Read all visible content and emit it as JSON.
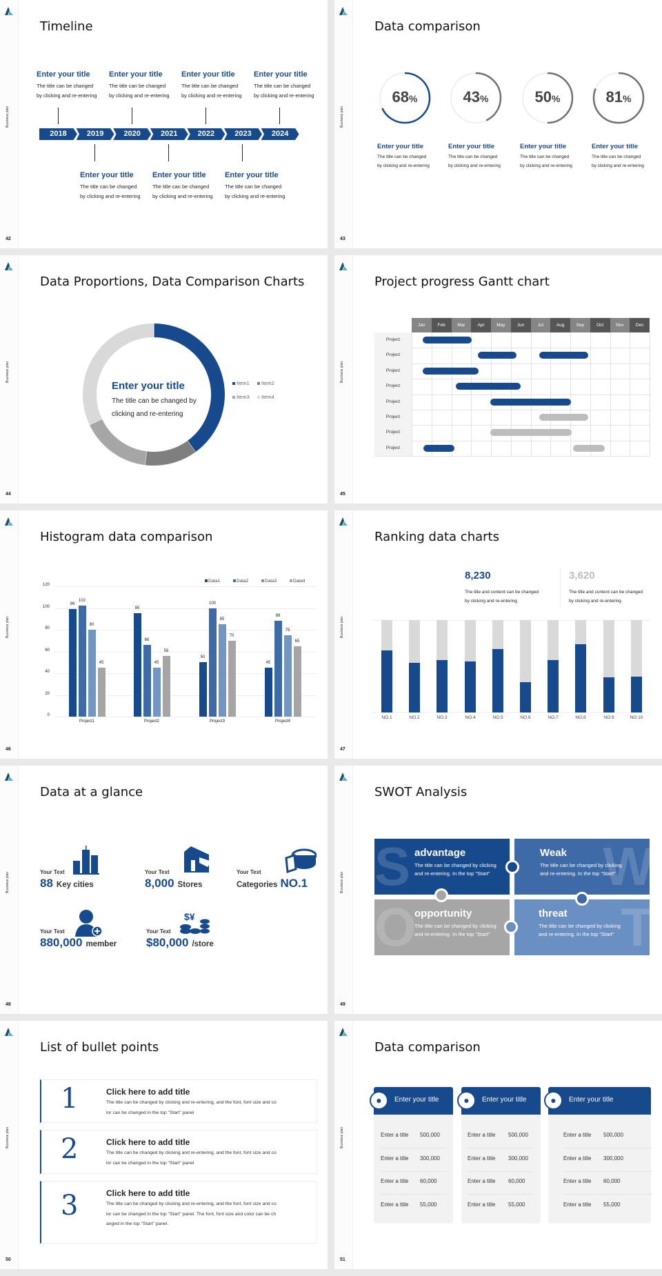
{
  "deck_label": "Business plan",
  "colors": {
    "blue": "#174a8c",
    "mid_blue": "#3e6aa6",
    "light_blue": "#7395c2",
    "gray": "#a5a5a5",
    "light_gray": "#d9d9d9"
  },
  "slides": [
    {
      "page": "42",
      "title": "Timeline",
      "years": [
        "2018",
        "2019",
        "2020",
        "2021",
        "2022",
        "2023",
        "2024"
      ],
      "top_items": [
        {
          "title": "Enter your title",
          "desc1": "The title can be changed",
          "desc2": "by clicking and re-entering"
        },
        {
          "title": "Enter your title",
          "desc1": "The title can be changed",
          "desc2": "by clicking and re-entering"
        },
        {
          "title": "Enter your title",
          "desc1": "The title can be changed",
          "desc2": "by clicking and re-entering"
        },
        {
          "title": "Enter your title",
          "desc1": "The title can be changed",
          "desc2": "by clicking and re-entering"
        }
      ],
      "bottom_items": [
        {
          "title": "Enter your title",
          "desc1": "The title can be changed",
          "desc2": "by clicking and re-entering"
        },
        {
          "title": "Enter your title",
          "desc1": "The title can be changed",
          "desc2": "by clicking and re-entering"
        },
        {
          "title": "Enter your title",
          "desc1": "The title can be changed",
          "desc2": "by clicking and re-entering"
        }
      ]
    },
    {
      "page": "43",
      "title": "Data comparison",
      "rings": [
        {
          "value": 68,
          "label": "68",
          "unit": "%",
          "color": "#174a8c",
          "title": "Enter your title",
          "desc1": "The title can be changed",
          "desc2": "by clicking and re-entering"
        },
        {
          "value": 43,
          "label": "43",
          "unit": "%",
          "color": "#707070",
          "title": "Enter your title",
          "desc1": "The title can be changed",
          "desc2": "by clicking and re-entering"
        },
        {
          "value": 50,
          "label": "50",
          "unit": "%",
          "color": "#707070",
          "title": "Enter your title",
          "desc1": "The title can be changed",
          "desc2": "by clicking and re-entering"
        },
        {
          "value": 81,
          "label": "81",
          "unit": "%",
          "color": "#707070",
          "title": "Enter your title",
          "desc1": "The title can be changed",
          "desc2": "by clicking and re-entering"
        }
      ]
    },
    {
      "page": "44",
      "title": "Data Proportions, Data Comparison Charts",
      "center_title": "Enter your title",
      "center_desc1": "The title can be changed by",
      "center_desc2": "clicking and re-entering",
      "legend_position": "right"
    },
    {
      "page": "45",
      "title": "Project progress Gantt chart",
      "months": [
        "Jan",
        "Feb",
        "Mar",
        "Apr",
        "May",
        "Jun",
        "Jul",
        "Aug",
        "Sep",
        "Oct",
        "Nov",
        "Dec"
      ],
      "rows": [
        {
          "label": "Project",
          "bars": [
            {
              "start": 0.57,
              "end": 3.03,
              "status": "active"
            }
          ]
        },
        {
          "label": "Project",
          "bars": [
            {
              "start": 3.33,
              "end": 5.3,
              "status": "active"
            },
            {
              "start": 6.43,
              "end": 8.9,
              "status": "active"
            }
          ]
        },
        {
          "label": "Project",
          "bars": [
            {
              "start": 0.57,
              "end": 3.36,
              "status": "active"
            }
          ]
        },
        {
          "label": "Project",
          "bars": [
            {
              "start": 2.24,
              "end": 5.48,
              "status": "active"
            }
          ]
        },
        {
          "label": "Project",
          "bars": [
            {
              "start": 3.95,
              "end": 8.03,
              "status": "active"
            }
          ]
        },
        {
          "label": "Project",
          "bars": [
            {
              "start": 6.43,
              "end": 8.9,
              "status": "planned"
            }
          ]
        },
        {
          "label": "Project",
          "bars": [
            {
              "start": 3.95,
              "end": 8.07,
              "status": "planned"
            }
          ]
        },
        {
          "label": "Project",
          "bars": [
            {
              "start": 0.58,
              "end": 2.16,
              "status": "active"
            },
            {
              "start": 8.15,
              "end": 9.74,
              "status": "planned"
            }
          ]
        }
      ]
    },
    {
      "page": "46",
      "title": "Histogram data comparison"
    },
    {
      "page": "47",
      "title": "Ranking data charts",
      "stats": [
        {
          "value": "8,230",
          "color": "#174a8c",
          "desc1": "The title and content can be changed",
          "desc2": "by clicking and re-entering"
        },
        {
          "value": "3,620",
          "color": "#bdbdbd",
          "desc1": "The title and content can be changed",
          "desc2": "by clicking and re-entering"
        }
      ]
    },
    {
      "page": "48",
      "title": "Data at a glance",
      "items": [
        {
          "label": "Your Text",
          "number": "88",
          "unit": "Key cities",
          "icon": "city-buildings-icon"
        },
        {
          "label": "Your Text",
          "number": "8,000",
          "unit": "Stores",
          "icon": "store-icon"
        },
        {
          "label": "Your Text",
          "prefix": "Categories",
          "number": "NO.1",
          "icon": "pie-chart-3d-icon"
        },
        {
          "label": "Your Text",
          "number": "880,000",
          "unit": "member",
          "icon": "add-member-icon"
        },
        {
          "label": "Your Text",
          "number": "$80,000",
          "unit": "/store",
          "icon": "coins-currency-icon"
        }
      ]
    },
    {
      "page": "49",
      "title": "SWOT Analysis",
      "quadrants": [
        {
          "letter": "S",
          "title": "advantage",
          "desc1": "The title can be changed by clicking",
          "desc2": "and re-entering. In the top \"Start\"",
          "color": "#174a8c"
        },
        {
          "letter": "W",
          "title": "Weak",
          "desc1": "The title can be changed by clicking",
          "desc2": "and re-entering. In the top \"Start\"",
          "color": "#3e6aa8"
        },
        {
          "letter": "O",
          "title": "opportunity",
          "desc1": "The title can be changed by clicking",
          "desc2": "and re-entering. In the top \"Start\"",
          "color": "#a6a6a6"
        },
        {
          "letter": "T",
          "title": "threat",
          "desc1": "The title can be changed by clicking",
          "desc2": "and re-entering. In the top \"Start\"",
          "color": "#6a8fc2"
        }
      ]
    },
    {
      "page": "50",
      "title": "List of bullet points",
      "bullets": [
        {
          "number": "1",
          "title": "Click here to add title",
          "lines": [
            "The title can be changed by clicking and re-entering, and the font, font size and co",
            "lor can be changed in the top \"Start\" panel"
          ]
        },
        {
          "number": "2",
          "title": "Click here to add title",
          "lines": [
            "The title can be changed by clicking and re-entering, and the font, font size and co",
            "lor can be changed in the top \"Start\" panel"
          ]
        },
        {
          "number": "3",
          "title": "Click here to add title",
          "lines": [
            "The title can be changed by clicking and re-entering, and the font, font size and co",
            "lor can be changed in the top \"Start\" panel. The font, font size and color can be ch",
            "anged in the top \"Start\" panel."
          ]
        }
      ]
    },
    {
      "page": "51",
      "title": "Data comparison",
      "cards": [
        {
          "title": "Enter your title",
          "icon": "contact-card-add-icon",
          "rows": [
            {
              "label": "Enter a title",
              "value": "500,000"
            },
            {
              "label": "Enter a title",
              "value": "300,000"
            },
            {
              "label": "Enter a title",
              "value": "60,000"
            },
            {
              "label": "Enter a title",
              "value": "55,000"
            }
          ]
        },
        {
          "title": "Enter your title",
          "icon": "person-add-icon",
          "rows": [
            {
              "label": "Enter a title",
              "value": "500,000"
            },
            {
              "label": "Enter a title",
              "value": "300,000"
            },
            {
              "label": "Enter a title",
              "value": "60,000"
            },
            {
              "label": "Enter a title",
              "value": "55,000"
            }
          ]
        },
        {
          "title": "Enter your title",
          "icon": "group-icon",
          "rows": [
            {
              "label": "Enter a title",
              "value": "500,000"
            },
            {
              "label": "Enter a title",
              "value": "300,000"
            },
            {
              "label": "Enter a title",
              "value": "60,000"
            },
            {
              "label": "Enter a title",
              "value": "55,000"
            }
          ]
        }
      ]
    }
  ],
  "chart_data": [
    {
      "type": "pie",
      "variant": "donut",
      "categories": [
        "Item1",
        "Item2",
        "Item3",
        "Item4"
      ],
      "values": [
        40,
        12,
        16,
        32
      ],
      "colors": [
        "#174a8c",
        "#7f7f7f",
        "#a6a6a6",
        "#d9d9d9"
      ],
      "legend": "right"
    },
    {
      "type": "bar",
      "categories": [
        "Project1",
        "Project2",
        "Project3",
        "Project4"
      ],
      "series": [
        {
          "name": "Data1",
          "values": [
            99,
            95,
            50,
            45
          ],
          "color": "#174a8c"
        },
        {
          "name": "Data2",
          "values": [
            102,
            66,
            100,
            88
          ],
          "color": "#3e6aa6"
        },
        {
          "name": "Data3",
          "values": [
            80,
            45,
            85,
            75
          ],
          "color": "#7395c2"
        },
        {
          "name": "Data4",
          "values": [
            45,
            56,
            70,
            65
          ],
          "color": "#a5a5a5"
        }
      ],
      "yticks": [
        "0",
        "20",
        "40",
        "60",
        "80",
        "100",
        "120"
      ],
      "ylim": [
        0,
        120
      ],
      "grid": true,
      "legend": "top-right",
      "data_labels": true
    },
    {
      "type": "bar",
      "variant": "stacked-percent",
      "categories": [
        "NO.1",
        "NO.2",
        "NO.3",
        "NO.4",
        "NO.5",
        "NO.6",
        "NO.7",
        "NO.8",
        "NO.9",
        "NO.10"
      ],
      "values": [
        67.5,
        54,
        57,
        55.5,
        69,
        33,
        57,
        74,
        38,
        39
      ],
      "ylim": [
        0,
        100
      ],
      "colors": [
        "#174a8c",
        "#d9d9d9"
      ]
    }
  ]
}
